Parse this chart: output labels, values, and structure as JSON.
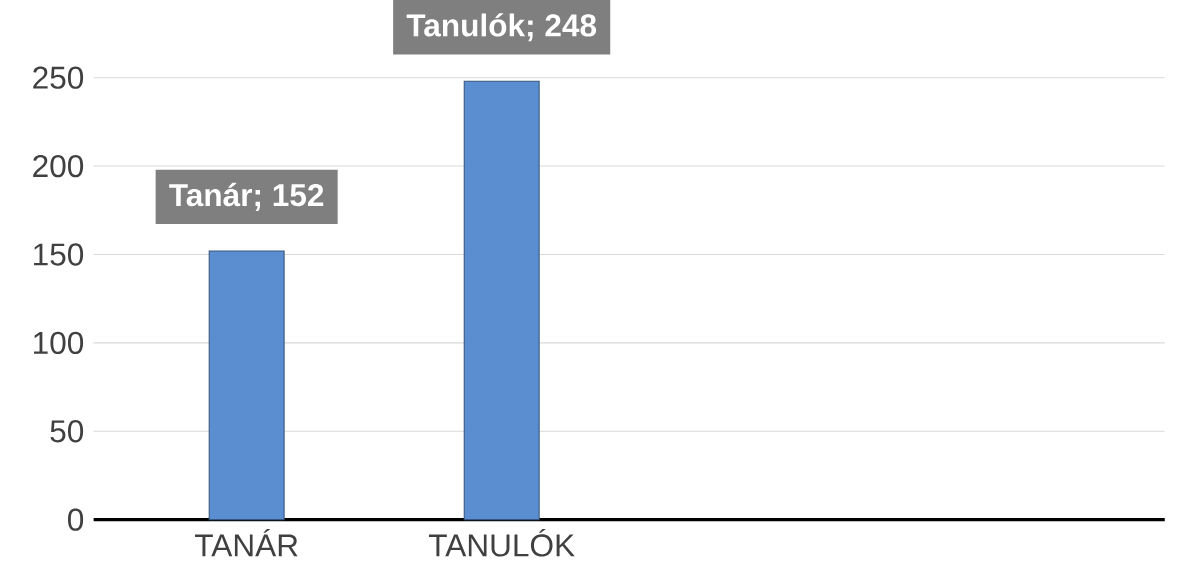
{
  "chart_data": {
    "type": "bar",
    "categories": [
      "TANÁR",
      "TANULÓK"
    ],
    "values": [
      152,
      248
    ],
    "value_labels": [
      "Tanár; 152",
      "Tanulók; 248"
    ],
    "color": "#5b8ed0",
    "ylim": [
      0,
      250
    ],
    "yticks": [
      0,
      50,
      100,
      150,
      200,
      250
    ],
    "grid": "y"
  }
}
